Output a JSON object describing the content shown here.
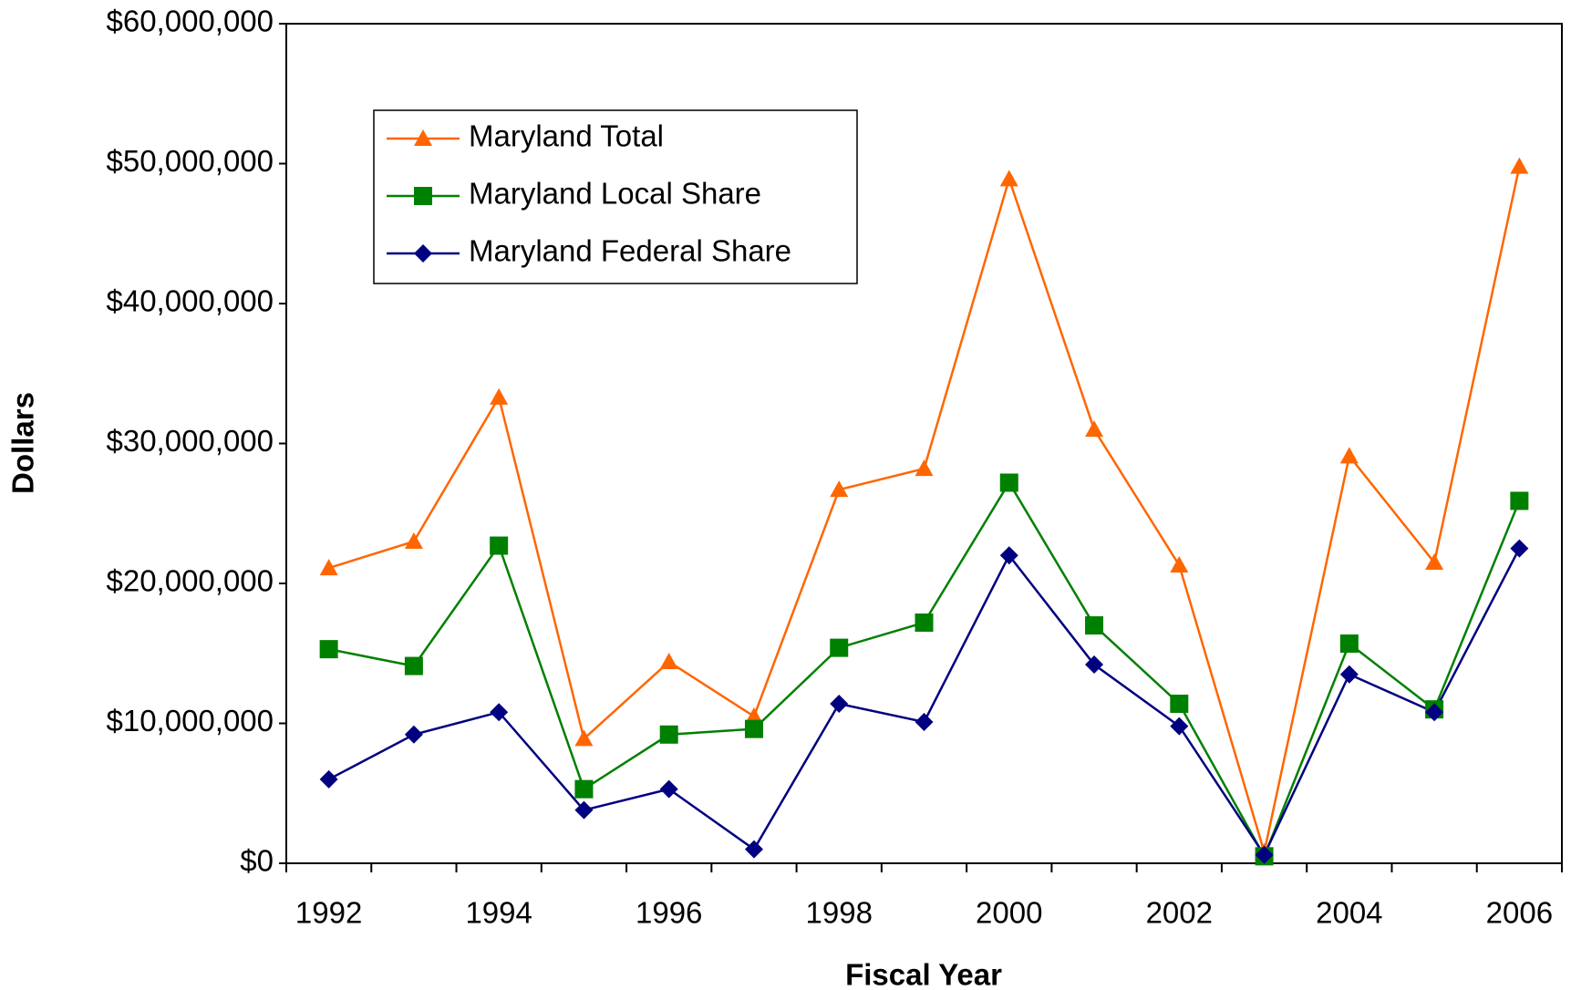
{
  "chart_data": {
    "type": "line",
    "x_label": "Fiscal Year",
    "y_label": "Dollars",
    "categories": [
      "1992",
      null,
      "1994",
      null,
      "1996",
      null,
      "1998",
      null,
      "2000",
      null,
      "2002",
      null,
      "2004",
      null,
      "2006"
    ],
    "series": [
      {
        "name": "Maryland Total",
        "color": "#ff6600",
        "marker": "triangle",
        "values": [
          21100000,
          23000000,
          33300000,
          8900000,
          14400000,
          10500000,
          26700000,
          28200000,
          48900000,
          31000000,
          21300000,
          800000,
          29100000,
          21500000,
          49800000
        ]
      },
      {
        "name": "Maryland Local Share",
        "color": "#008000",
        "marker": "square",
        "values": [
          15300000,
          14100000,
          22700000,
          5300000,
          9200000,
          9600000,
          15400000,
          17200000,
          27200000,
          17000000,
          11400000,
          500000,
          15700000,
          11000000,
          25900000
        ]
      },
      {
        "name": "Maryland Federal Share",
        "color": "#000080",
        "marker": "diamond",
        "values": [
          6000000,
          9200000,
          10800000,
          3800000,
          5300000,
          1000000,
          11400000,
          10100000,
          22000000,
          14200000,
          9800000,
          600000,
          13500000,
          10800000,
          22500000
        ]
      }
    ],
    "ylim": [
      0,
      60000000
    ],
    "yticks": [
      {
        "value": 0,
        "label": "$0"
      },
      {
        "value": 10000000,
        "label": "$10,000,000"
      },
      {
        "value": 20000000,
        "label": "$20,000,000"
      },
      {
        "value": 30000000,
        "label": "$30,000,000"
      },
      {
        "value": 40000000,
        "label": "$40,000,000"
      },
      {
        "value": 50000000,
        "label": "$50,000,000"
      },
      {
        "value": 60000000,
        "label": "$60,000,000"
      }
    ],
    "legend": "upper left",
    "grid": false
  }
}
